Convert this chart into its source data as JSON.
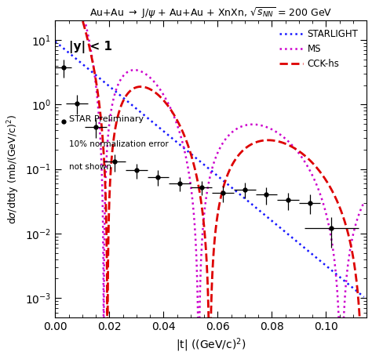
{
  "title": "Au+Au $\\rightarrow$ J/$\\psi$ + Au+Au + XnXn, $\\sqrt{s_{NN}}$ = 200 GeV",
  "xlabel": "|t| ((GeV/c)$^2$)",
  "ylabel": "d$\\sigma$/dtdy (mb/(GeV/c)$^2$)",
  "xlim": [
    0,
    0.115
  ],
  "ylim": [
    0.0005,
    20
  ],
  "data_points": {
    "x": [
      0.003,
      0.008,
      0.015,
      0.022,
      0.03,
      0.038,
      0.046,
      0.054,
      0.062,
      0.07,
      0.078,
      0.086,
      0.094,
      0.102
    ],
    "y": [
      3.8,
      1.05,
      0.45,
      0.13,
      0.095,
      0.075,
      0.06,
      0.052,
      0.043,
      0.048,
      0.04,
      0.033,
      0.03,
      0.012
    ],
    "xerr": [
      0.003,
      0.004,
      0.004,
      0.004,
      0.004,
      0.004,
      0.004,
      0.004,
      0.004,
      0.004,
      0.004,
      0.004,
      0.004,
      0.01
    ],
    "yerr_lo": [
      1.2,
      0.35,
      0.15,
      0.04,
      0.025,
      0.02,
      0.015,
      0.013,
      0.012,
      0.013,
      0.012,
      0.01,
      0.01,
      0.006
    ],
    "yerr_hi": [
      1.2,
      0.35,
      0.15,
      0.04,
      0.025,
      0.02,
      0.015,
      0.013,
      0.012,
      0.013,
      0.012,
      0.01,
      0.01,
      0.006
    ]
  },
  "starlight_color": "#1515FF",
  "ms_color": "#CC00CC",
  "cck_color": "#DD0000",
  "bg_color": "#FFFFFF"
}
